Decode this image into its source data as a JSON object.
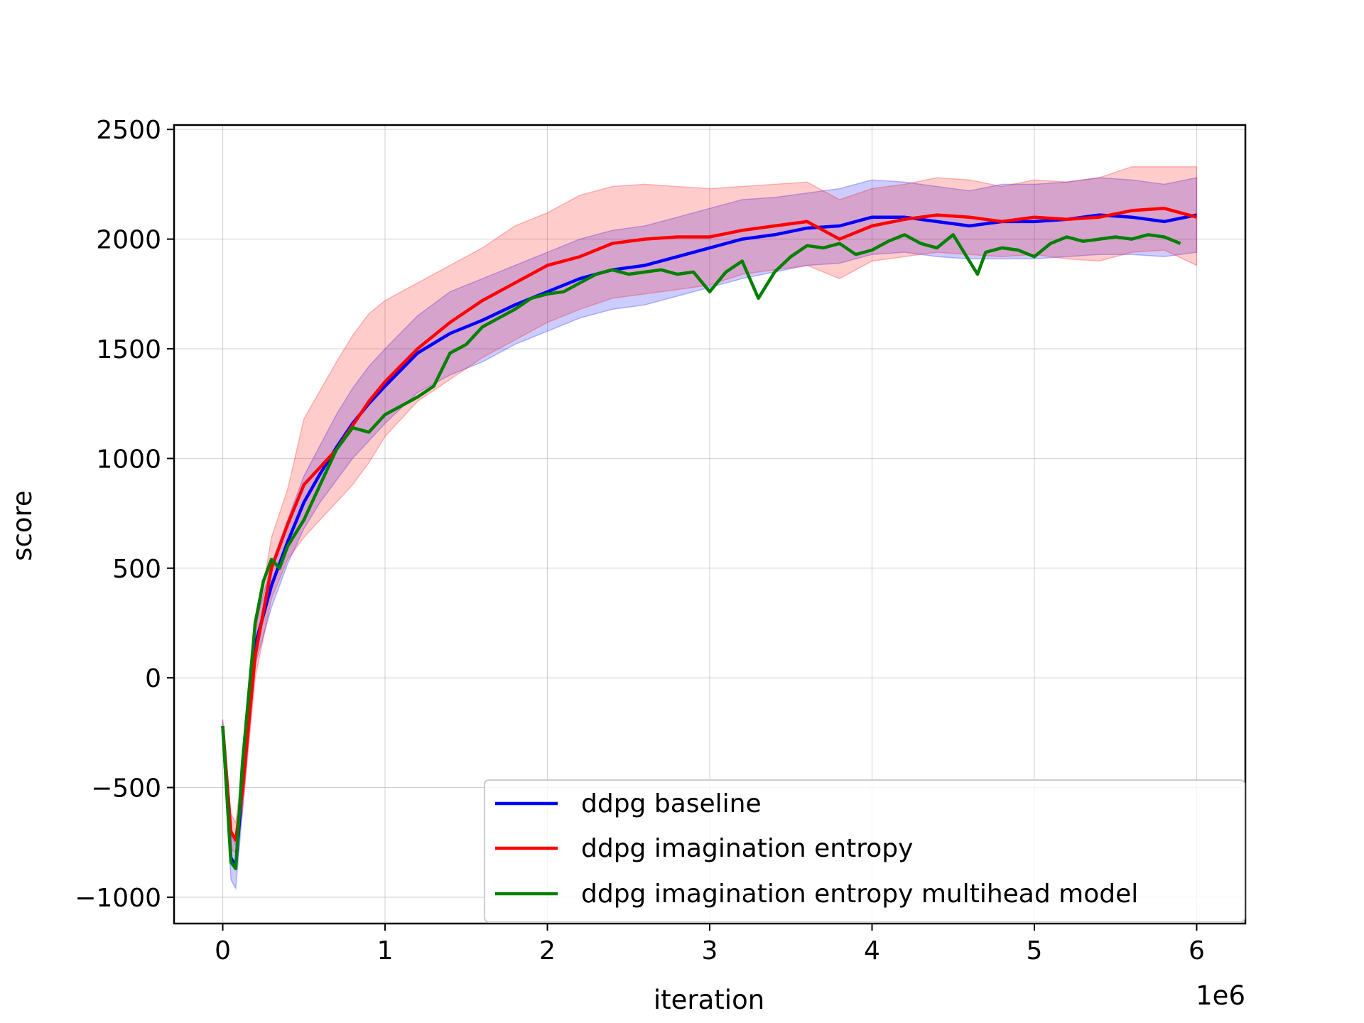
{
  "chart_data": {
    "type": "line",
    "title": "",
    "xlabel": "iteration",
    "ylabel": "score",
    "x_offset_label": "1e6",
    "xlim": [
      -0.3,
      6.3
    ],
    "ylim": [
      -1120,
      2520
    ],
    "xticks": [
      0,
      1,
      2,
      3,
      4,
      5,
      6
    ],
    "xtick_labels": [
      "0",
      "1",
      "2",
      "3",
      "4",
      "5",
      "6"
    ],
    "yticks": [
      -1000,
      -500,
      0,
      500,
      1000,
      1500,
      2000,
      2500
    ],
    "ytick_labels": [
      "−1000",
      "−500",
      "0",
      "500",
      "1000",
      "1500",
      "2000",
      "2500"
    ],
    "grid": true,
    "legend_position": "lower-right",
    "series": [
      {
        "name": "ddpg baseline",
        "color": "#0000ff",
        "band_color": "#0000ff",
        "x": [
          0,
          0.05,
          0.08,
          0.12,
          0.2,
          0.3,
          0.4,
          0.5,
          0.6,
          0.7,
          0.8,
          0.9,
          1.0,
          1.2,
          1.4,
          1.6,
          1.8,
          2.0,
          2.2,
          2.4,
          2.6,
          2.8,
          3.0,
          3.2,
          3.4,
          3.6,
          3.8,
          4.0,
          4.2,
          4.4,
          4.6,
          4.8,
          5.0,
          5.2,
          5.4,
          5.6,
          5.8,
          6.0
        ],
        "y": [
          -220,
          -820,
          -860,
          -500,
          150,
          420,
          620,
          800,
          930,
          1050,
          1160,
          1250,
          1330,
          1480,
          1570,
          1630,
          1700,
          1760,
          1820,
          1860,
          1880,
          1920,
          1960,
          2000,
          2020,
          2050,
          2060,
          2100,
          2100,
          2080,
          2060,
          2080,
          2080,
          2090,
          2110,
          2100,
          2080,
          2110
        ],
        "lower": [
          -250,
          -920,
          -960,
          -620,
          60,
          320,
          520,
          680,
          800,
          900,
          1000,
          1080,
          1160,
          1300,
          1380,
          1440,
          1520,
          1580,
          1640,
          1680,
          1700,
          1740,
          1780,
          1820,
          1850,
          1880,
          1890,
          1930,
          1940,
          1920,
          1910,
          1910,
          1910,
          1920,
          1930,
          1930,
          1920,
          1940
        ],
        "upper": [
          -190,
          -720,
          -760,
          -380,
          240,
          520,
          720,
          920,
          1060,
          1200,
          1320,
          1420,
          1500,
          1650,
          1760,
          1820,
          1880,
          1940,
          2000,
          2040,
          2060,
          2100,
          2140,
          2180,
          2190,
          2210,
          2230,
          2270,
          2260,
          2240,
          2220,
          2250,
          2250,
          2260,
          2280,
          2270,
          2250,
          2280
        ]
      },
      {
        "name": "ddpg imagination entropy",
        "color": "#ff0000",
        "band_color": "#ff0000",
        "x": [
          0,
          0.05,
          0.08,
          0.12,
          0.2,
          0.3,
          0.4,
          0.5,
          0.6,
          0.7,
          0.8,
          0.9,
          1.0,
          1.2,
          1.4,
          1.6,
          1.8,
          2.0,
          2.2,
          2.4,
          2.6,
          2.8,
          3.0,
          3.2,
          3.4,
          3.6,
          3.8,
          4.0,
          4.2,
          4.4,
          4.6,
          4.8,
          5.0,
          5.2,
          5.4,
          5.6,
          5.8,
          6.0
        ],
        "y": [
          -220,
          -700,
          -740,
          -520,
          100,
          500,
          700,
          880,
          960,
          1040,
          1150,
          1260,
          1350,
          1500,
          1620,
          1720,
          1800,
          1880,
          1920,
          1980,
          2000,
          2010,
          2010,
          2040,
          2060,
          2080,
          2000,
          2060,
          2090,
          2110,
          2100,
          2080,
          2100,
          2090,
          2100,
          2130,
          2140,
          2100
        ],
        "lower": [
          -250,
          -780,
          -800,
          -620,
          0,
          360,
          540,
          640,
          720,
          800,
          880,
          980,
          1100,
          1260,
          1360,
          1460,
          1540,
          1620,
          1680,
          1730,
          1750,
          1770,
          1790,
          1840,
          1860,
          1880,
          1820,
          1900,
          1920,
          1940,
          1930,
          1920,
          1930,
          1910,
          1900,
          1940,
          1950,
          1880
        ],
        "upper": [
          -190,
          -620,
          -660,
          -420,
          200,
          640,
          860,
          1180,
          1310,
          1440,
          1560,
          1660,
          1720,
          1800,
          1880,
          1960,
          2060,
          2120,
          2200,
          2240,
          2250,
          2240,
          2230,
          2240,
          2250,
          2260,
          2180,
          2230,
          2250,
          2280,
          2270,
          2240,
          2270,
          2260,
          2280,
          2330,
          2330,
          2330
        ]
      },
      {
        "name": "ddpg imagination entropy multihead model",
        "color": "#008000",
        "band_color": null,
        "x": [
          0,
          0.05,
          0.08,
          0.12,
          0.2,
          0.25,
          0.3,
          0.35,
          0.4,
          0.5,
          0.6,
          0.7,
          0.8,
          0.9,
          1.0,
          1.1,
          1.2,
          1.3,
          1.4,
          1.5,
          1.6,
          1.7,
          1.8,
          1.9,
          2.0,
          2.1,
          2.2,
          2.3,
          2.4,
          2.5,
          2.6,
          2.7,
          2.8,
          2.9,
          3.0,
          3.1,
          3.2,
          3.3,
          3.4,
          3.5,
          3.6,
          3.7,
          3.8,
          3.9,
          4.0,
          4.1,
          4.2,
          4.3,
          4.4,
          4.5,
          4.6,
          4.65,
          4.7,
          4.8,
          4.9,
          5.0,
          5.1,
          5.2,
          5.3,
          5.4,
          5.5,
          5.6,
          5.7,
          5.8,
          5.9
        ],
        "y": [
          -220,
          -840,
          -870,
          -400,
          250,
          440,
          540,
          500,
          600,
          720,
          880,
          1040,
          1140,
          1120,
          1200,
          1240,
          1280,
          1330,
          1480,
          1520,
          1600,
          1640,
          1680,
          1730,
          1750,
          1760,
          1800,
          1840,
          1860,
          1840,
          1850,
          1860,
          1840,
          1850,
          1760,
          1850,
          1900,
          1730,
          1850,
          1920,
          1970,
          1960,
          1980,
          1930,
          1950,
          1990,
          2020,
          1980,
          1960,
          2020,
          1900,
          1840,
          1940,
          1960,
          1950,
          1920,
          1980,
          2010,
          1990,
          2000,
          2010,
          2000,
          2020,
          2010,
          1980
        ]
      }
    ]
  }
}
